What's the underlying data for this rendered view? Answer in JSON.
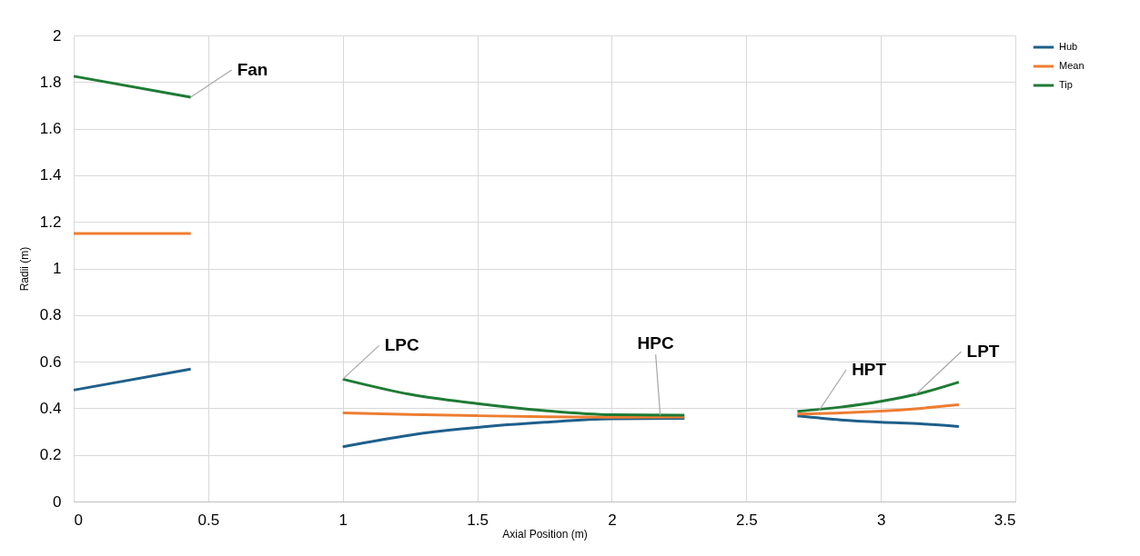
{
  "chart_data": {
    "type": "line",
    "xlabel": "Axial Position (m)",
    "ylabel": "Radii (m)",
    "x": [
      0,
      0.435,
      0.7,
      1.0,
      1.25,
      1.5,
      1.75,
      2.0,
      2.27,
      2.5,
      2.69,
      2.85,
      3.0,
      3.15,
      3.29
    ],
    "series": [
      {
        "name": "Hub",
        "color": "#1f5f8b",
        "values": [
          0.478,
          0.568,
          null,
          0.235,
          0.285,
          0.318,
          0.34,
          0.355,
          0.357,
          null,
          0.367,
          0.35,
          0.34,
          0.333,
          0.322
        ]
      },
      {
        "name": "Mean",
        "color": "#ed7d31",
        "values": [
          1.15,
          1.15,
          null,
          0.38,
          0.373,
          0.368,
          0.364,
          0.362,
          0.363,
          null,
          0.375,
          0.38,
          0.388,
          0.4,
          0.415
        ]
      },
      {
        "name": "Tip",
        "color": "#1e7b34",
        "values": [
          1.825,
          1.735,
          null,
          0.525,
          0.46,
          0.42,
          0.39,
          0.372,
          0.37,
          null,
          0.387,
          0.405,
          0.43,
          0.465,
          0.512
        ]
      }
    ],
    "annotations": [
      {
        "text": "Fan",
        "x": 0.435,
        "y": 1.735
      },
      {
        "text": "LPC",
        "x": 1.0,
        "y": 0.525
      },
      {
        "text": "HPC",
        "x": 2.18,
        "y": 0.37
      },
      {
        "text": "HPT",
        "x": 2.77,
        "y": 0.39
      },
      {
        "text": "LPT",
        "x": 3.13,
        "y": 0.46
      }
    ],
    "xlim": [
      0,
      3.5
    ],
    "xticks": [
      0,
      0.5,
      1,
      1.5,
      2,
      2.5,
      3,
      3.5
    ],
    "ylim": [
      0,
      2
    ],
    "yticks": [
      0,
      0.2,
      0.4,
      0.6,
      0.8,
      1,
      1.2,
      1.4,
      1.6,
      1.8,
      2
    ],
    "grid": true,
    "legend": "right",
    "marker": "none",
    "line_style": "solid"
  }
}
